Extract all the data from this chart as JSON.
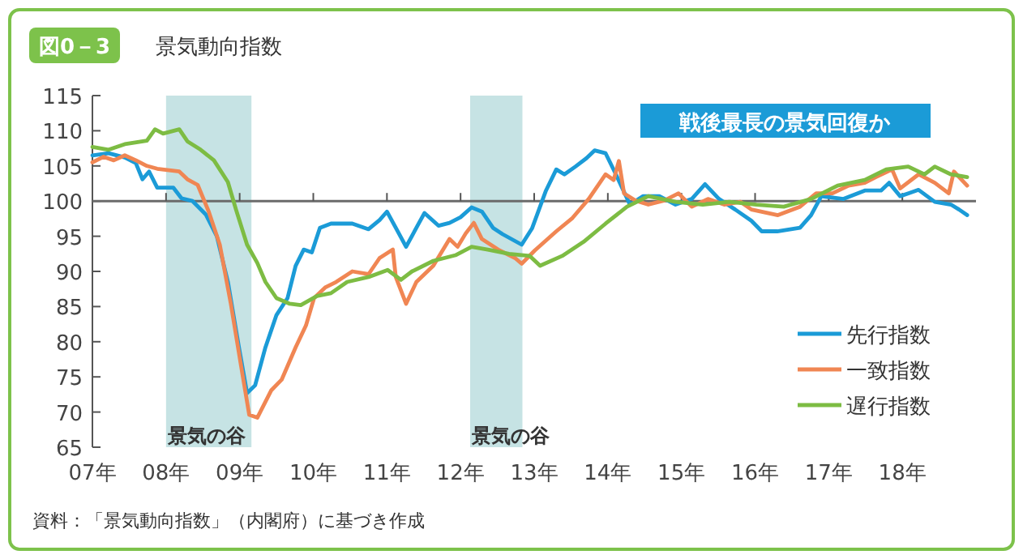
{
  "chart_data": {
    "type": "line",
    "title": "景気動向指数",
    "annotations": [
      "図0－3",
      "戦後最長の景気回復か",
      "資料：「景気動向指数」（内閣府）に基づき作成"
    ],
    "xlim": [
      7,
      19
    ],
    "xticks": [
      {
        "value": 7,
        "label": "07年"
      },
      {
        "value": 8,
        "label": "08年"
      },
      {
        "value": 9,
        "label": "09年"
      },
      {
        "value": 10,
        "label": "10年"
      },
      {
        "value": 11,
        "label": "11年"
      },
      {
        "value": 12,
        "label": "12年"
      },
      {
        "value": 13,
        "label": "13年"
      },
      {
        "value": 14,
        "label": "14年"
      },
      {
        "value": 15,
        "label": "15年"
      },
      {
        "value": 16,
        "label": "16年"
      },
      {
        "value": 17,
        "label": "17年"
      },
      {
        "value": 18,
        "label": "18年"
      }
    ],
    "ylim": [
      65,
      115
    ],
    "yticks": [
      65,
      70,
      75,
      80,
      85,
      90,
      95,
      100,
      105,
      110,
      115
    ],
    "grid": false,
    "legend": "bottom right",
    "line_style": "solid",
    "ref_lines": [
      {
        "axis": "y",
        "value": 100,
        "color": "#6b6b6b"
      }
    ],
    "bands": [
      {
        "axis": "x",
        "from": 8.0,
        "to": 9.16,
        "label": "景気の谷",
        "color": "#c6e3e4"
      },
      {
        "axis": "x",
        "from": 12.13,
        "to": 12.84,
        "label": "景気の谷",
        "color": "#c6e3e4"
      }
    ],
    "series": [
      {
        "name": "先行指数",
        "color": "#1b9bd7",
        "x": [
          7.0,
          7.22,
          7.44,
          7.59,
          7.68,
          7.77,
          7.88,
          8.1,
          8.21,
          8.36,
          8.54,
          8.69,
          8.84,
          8.99,
          9.1,
          9.21,
          9.35,
          9.5,
          9.65,
          9.76,
          9.87,
          9.98,
          10.09,
          10.24,
          10.53,
          10.75,
          10.9,
          11.0,
          11.12,
          11.26,
          11.4,
          11.51,
          11.7,
          11.85,
          12.0,
          12.15,
          12.29,
          12.44,
          12.57,
          12.83,
          12.97,
          13.16,
          13.3,
          13.41,
          13.56,
          13.71,
          13.82,
          13.97,
          14.11,
          14.3,
          14.48,
          14.7,
          14.92,
          15.14,
          15.32,
          15.51,
          15.73,
          15.95,
          16.09,
          16.3,
          16.61,
          16.76,
          16.9,
          17.2,
          17.49,
          17.71,
          17.82,
          17.97,
          18.08,
          18.22,
          18.44,
          18.66,
          18.77,
          18.88
        ],
        "values": [
          106.5,
          106.8,
          106.2,
          105.4,
          103.1,
          104.2,
          101.9,
          101.9,
          100.4,
          100,
          98.1,
          95,
          88.5,
          79.2,
          72.7,
          73.8,
          79.2,
          83.8,
          86.2,
          90.8,
          93.1,
          92.7,
          96.2,
          96.8,
          96.8,
          96,
          97.3,
          98.5,
          96.2,
          93.5,
          96.2,
          98.3,
          96.5,
          96.9,
          97.7,
          99.1,
          98.5,
          96.2,
          95.3,
          93.8,
          96.1,
          101.5,
          104.5,
          103.8,
          104.9,
          106.1,
          107.2,
          106.8,
          103.8,
          99.5,
          100.7,
          100.7,
          99.5,
          100.3,
          102.4,
          100.3,
          98.8,
          97.2,
          95.7,
          95.7,
          96.2,
          98,
          100.7,
          100.3,
          101.5,
          101.5,
          102.6,
          100.7,
          101.1,
          101.6,
          99.9,
          99.5,
          98.8,
          98
        ]
      },
      {
        "name": "一致指数",
        "color": "#f08653",
        "x": [
          7.0,
          7.15,
          7.29,
          7.44,
          7.59,
          7.74,
          7.88,
          8.18,
          8.29,
          8.43,
          8.58,
          8.73,
          8.88,
          9.02,
          9.13,
          9.24,
          9.43,
          9.57,
          9.76,
          9.9,
          10.01,
          10.16,
          10.31,
          10.53,
          10.75,
          10.9,
          11.08,
          11.12,
          11.26,
          11.4,
          11.63,
          11.85,
          11.96,
          12.07,
          12.18,
          12.29,
          12.51,
          12.74,
          12.83,
          13.01,
          13.3,
          13.52,
          13.74,
          13.97,
          14.08,
          14.15,
          14.22,
          14.37,
          14.55,
          14.77,
          14.96,
          15.14,
          15.36,
          15.58,
          15.8,
          15.95,
          16.31,
          16.61,
          16.83,
          17.05,
          17.27,
          17.49,
          17.64,
          17.86,
          17.97,
          18.22,
          18.44,
          18.63,
          18.7,
          18.88
        ],
        "values": [
          105.5,
          106.3,
          105.8,
          106.5,
          105.8,
          105,
          104.6,
          104.2,
          103.1,
          102.3,
          98.5,
          93.8,
          85.4,
          76.5,
          69.6,
          69.2,
          73.1,
          74.6,
          79.2,
          82.3,
          86.2,
          87.7,
          88.5,
          90,
          89.6,
          91.9,
          93.1,
          89.2,
          85.4,
          88.5,
          90.8,
          94.6,
          93.5,
          95.4,
          96.9,
          94.6,
          93.1,
          91.9,
          91.1,
          93,
          95.7,
          97.6,
          100.3,
          103.8,
          103,
          105.7,
          101.1,
          100.1,
          99.5,
          100.1,
          101.1,
          99.2,
          100.3,
          99.5,
          99.9,
          98.8,
          98,
          99.2,
          101.1,
          101.1,
          102.2,
          102.6,
          103.4,
          104.5,
          101.8,
          103.8,
          102.6,
          101.1,
          104.2,
          102.2
        ]
      },
      {
        "name": "遅行指数",
        "color": "#7dbc43",
        "x": [
          7.0,
          7.22,
          7.44,
          7.74,
          7.85,
          7.96,
          8.18,
          8.29,
          8.47,
          8.65,
          8.84,
          8.95,
          9.1,
          9.24,
          9.35,
          9.5,
          9.68,
          9.83,
          10.05,
          10.24,
          10.46,
          10.75,
          11.01,
          11.19,
          11.34,
          11.63,
          11.93,
          12.15,
          12.37,
          12.66,
          12.94,
          13.08,
          13.38,
          13.67,
          13.97,
          14.26,
          14.55,
          14.92,
          15.29,
          15.65,
          16.02,
          16.39,
          16.76,
          17.12,
          17.49,
          17.78,
          18.08,
          18.3,
          18.44,
          18.66,
          18.88
        ],
        "values": [
          107.7,
          107.3,
          108.1,
          108.6,
          110.2,
          109.6,
          110.2,
          108.5,
          107.3,
          105.8,
          102.7,
          98.8,
          93.8,
          91.2,
          88.5,
          86.2,
          85.4,
          85.2,
          86.5,
          86.9,
          88.5,
          89.2,
          90.2,
          88.8,
          90,
          91.5,
          92.3,
          93.5,
          93.1,
          92.5,
          92.2,
          90.8,
          92.2,
          94.2,
          96.8,
          99.2,
          100.7,
          99.9,
          99.5,
          99.9,
          99.5,
          99.2,
          100.3,
          102.2,
          103,
          104.5,
          104.9,
          103.8,
          104.9,
          103.8,
          103.4
        ]
      }
    ]
  }
}
